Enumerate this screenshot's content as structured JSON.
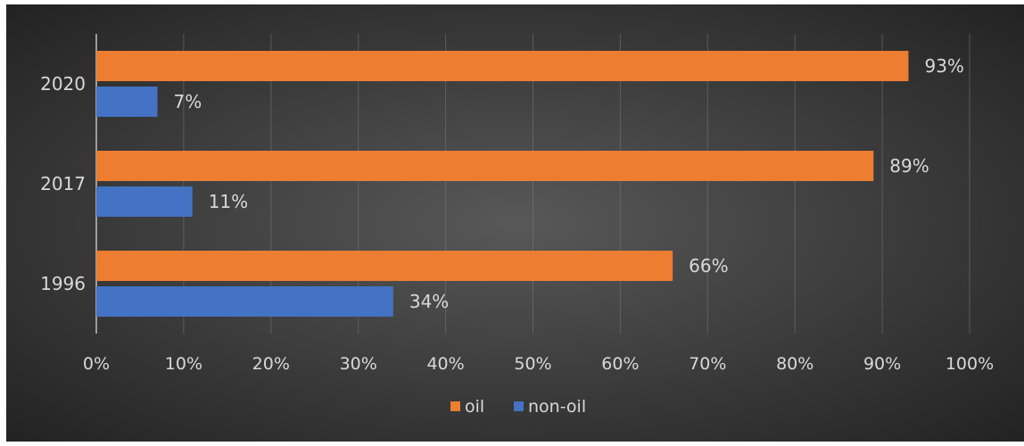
{
  "chart_data": {
    "type": "bar",
    "orientation": "horizontal",
    "categories": [
      "2020",
      "2017",
      "1996"
    ],
    "series": [
      {
        "name": "oil",
        "values": [
          93,
          89,
          66
        ],
        "labels": [
          "93%",
          "89%",
          "66%"
        ]
      },
      {
        "name": "non-oil",
        "values": [
          7,
          11,
          34
        ],
        "labels": [
          "7%",
          "11%",
          "34%"
        ]
      }
    ],
    "xlim": [
      0,
      100
    ],
    "x_ticks": [
      0,
      10,
      20,
      30,
      40,
      50,
      60,
      70,
      80,
      90,
      100
    ],
    "x_tick_labels": [
      "0%",
      "10%",
      "20%",
      "30%",
      "40%",
      "50%",
      "60%",
      "70%",
      "80%",
      "90%",
      "100%"
    ],
    "grid": true,
    "legend_position": "bottom"
  },
  "colors": {
    "oil": "#ed7d31",
    "non_oil": "#4472c4",
    "background_center": "#585858",
    "background_edge": "#1f1f1f",
    "text": "#d9d9d9",
    "grid": "#7a7a7a"
  }
}
